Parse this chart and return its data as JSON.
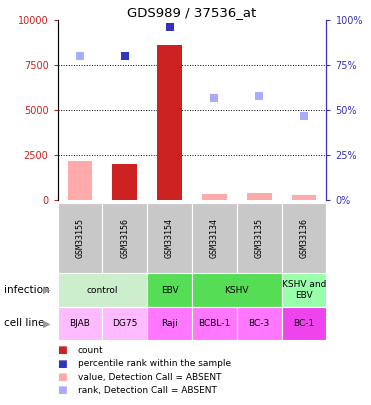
{
  "title": "GDS989 / 37536_at",
  "samples": [
    "GSM33155",
    "GSM33156",
    "GSM33154",
    "GSM33134",
    "GSM33135",
    "GSM33136"
  ],
  "bar_values": [
    2200,
    2000,
    8600,
    350,
    400,
    320
  ],
  "bar_colors": [
    "#ffaaaa",
    "#cc2222",
    "#cc2222",
    "#ffaaaa",
    "#ffaaaa",
    "#ffaaaa"
  ],
  "rank_values": [
    80,
    80,
    96,
    57,
    58,
    47
  ],
  "rank_colors": [
    "#aaaaff",
    "#3333bb",
    "#3333bb",
    "#aaaaff",
    "#aaaaff",
    "#aaaaff"
  ],
  "ylim_left": [
    0,
    10000
  ],
  "ylim_right": [
    0,
    100
  ],
  "yticks_left": [
    0,
    2500,
    5000,
    7500,
    10000
  ],
  "yticks_right": [
    0,
    25,
    50,
    75,
    100
  ],
  "cell_lines": [
    "BJAB",
    "DG75",
    "Raji",
    "BCBL-1",
    "BC-3",
    "BC-1"
  ],
  "cell_colors": [
    "#ffbbff",
    "#ffbbff",
    "#ff77ff",
    "#ff77ff",
    "#ff77ff",
    "#ee44ee"
  ],
  "infection_groups": [
    {
      "label": "control",
      "start": 0,
      "end": 2,
      "color": "#cceecc"
    },
    {
      "label": "EBV",
      "start": 2,
      "end": 3,
      "color": "#55dd55"
    },
    {
      "label": "KSHV",
      "start": 3,
      "end": 5,
      "color": "#55dd55"
    },
    {
      "label": "KSHV and\nEBV",
      "start": 5,
      "end": 6,
      "color": "#99ffaa"
    }
  ],
  "legend_items": [
    {
      "color": "#cc2222",
      "label": "count"
    },
    {
      "color": "#3333bb",
      "label": "percentile rank within the sample"
    },
    {
      "color": "#ffaaaa",
      "label": "value, Detection Call = ABSENT"
    },
    {
      "color": "#aaaaff",
      "label": "rank, Detection Call = ABSENT"
    }
  ]
}
